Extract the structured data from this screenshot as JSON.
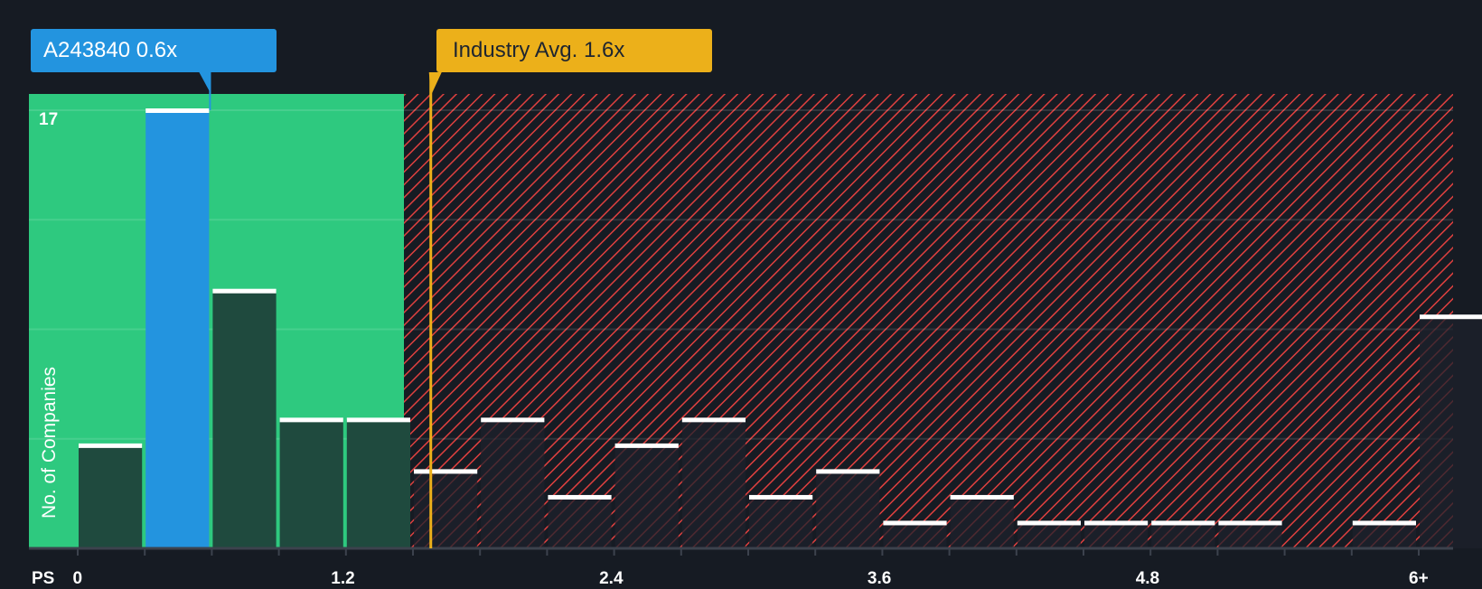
{
  "company_label": "A243840 0.6x",
  "industry_label": "Industry Avg. 1.6x",
  "y_axis_label": "No. of Companies",
  "y_max_label": "17",
  "x_axis_prefix": "PS",
  "colors": {
    "background": "#161b23",
    "fair_zone": "#2ec97f",
    "company_bar": "#2394df",
    "industry_line": "#ecb01a",
    "hatch": "#e0403f",
    "bar_dark": "#1f4a3e",
    "bar_cap": "#ffffff"
  },
  "chart_data": {
    "type": "bar",
    "title": "",
    "xlabel": "PS",
    "ylabel": "No. of Companies",
    "ylim": [
      0,
      17
    ],
    "x_tick_labels": [
      "0",
      "1.2",
      "2.4",
      "3.6",
      "4.8",
      "6+"
    ],
    "bin_width": 0.3,
    "categories": [
      "0-0.3",
      "0.3-0.6",
      "0.6-0.9",
      "0.9-1.2",
      "1.2-1.5",
      "1.5-1.8",
      "1.8-2.1",
      "2.1-2.4",
      "2.4-2.7",
      "2.7-3.0",
      "3.0-3.3",
      "3.3-3.6",
      "3.6-3.9",
      "3.9-4.2",
      "4.2-4.5",
      "4.5-4.8",
      "4.8-5.1",
      "5.1-5.4",
      "5.4-5.7",
      "5.7-6.0",
      "6+"
    ],
    "values": [
      4,
      17,
      10,
      5,
      5,
      3,
      5,
      2,
      4,
      5,
      2,
      3,
      1,
      2,
      1,
      1,
      1,
      1,
      0,
      1,
      9
    ],
    "highlight_index": 1,
    "company_value": 0.6,
    "industry_avg": 1.6,
    "fair_zone_max": 1.5,
    "grid": true,
    "legend": "none"
  }
}
